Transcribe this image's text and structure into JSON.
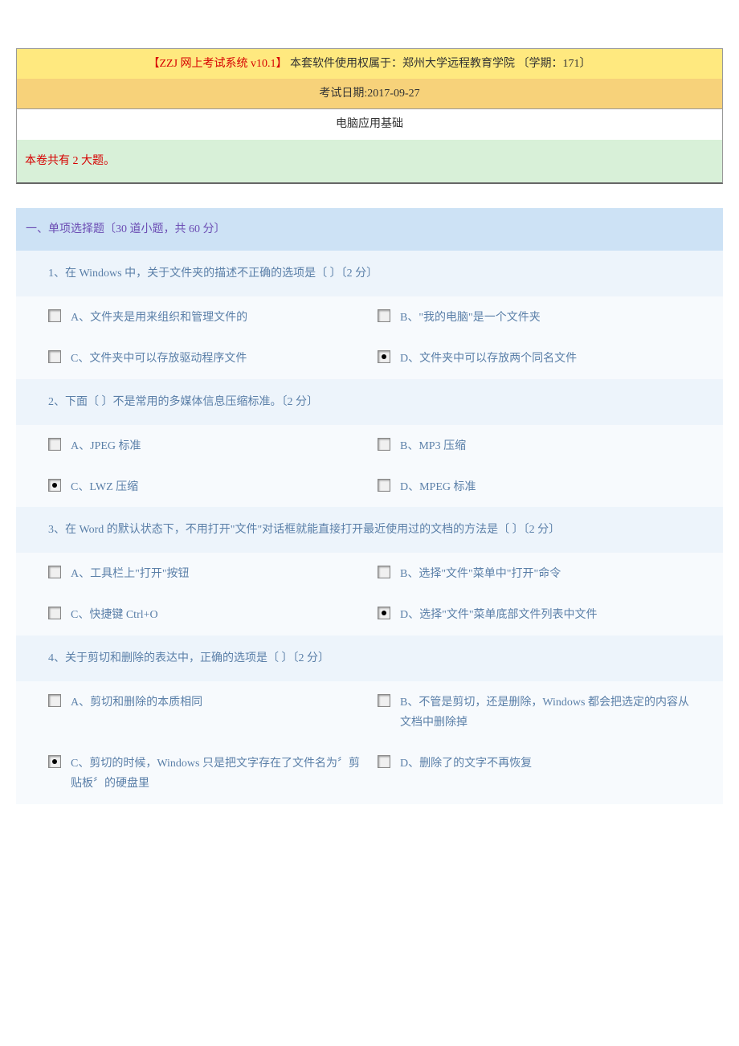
{
  "header": {
    "system_name": "【ZZJ 网上考试系统 v10.1】",
    "license_text": " 本套软件使用权属于：郑州大学远程教育学院 〔学期：171〕",
    "exam_date_label": "考试日期:2017-09-27",
    "exam_title": "电脑应用基础"
  },
  "summary": "本卷共有 2 大题。",
  "section": {
    "title": "一、单项选择题〔30 道小题，共 60 分〕"
  },
  "questions": [
    {
      "text": "1、在 Windows 中，关于文件夹的描述不正确的选项是〔 〕〔2 分〕",
      "options": [
        {
          "letter": "A",
          "text": "文件夹是用来组织和管理文件的",
          "selected": false
        },
        {
          "letter": "B",
          "text": "\"我的电脑\"是一个文件夹",
          "selected": false
        },
        {
          "letter": "C",
          "text": "文件夹中可以存放驱动程序文件",
          "selected": false
        },
        {
          "letter": "D",
          "text": "文件夹中可以存放两个同名文件",
          "selected": true
        }
      ]
    },
    {
      "text": "2、下面〔 〕不是常用的多媒体信息压缩标准。〔2 分〕",
      "options": [
        {
          "letter": "A",
          "text": "JPEG 标准",
          "selected": false
        },
        {
          "letter": "B",
          "text": "MP3 压缩",
          "selected": false
        },
        {
          "letter": "C",
          "text": "LWZ 压缩",
          "selected": true
        },
        {
          "letter": "D",
          "text": "MPEG 标准",
          "selected": false
        }
      ]
    },
    {
      "text": "3、在 Word 的默认状态下，不用打开\"文件\"对话框就能直接打开最近使用过的文档的方法是〔 〕〔2 分〕",
      "options": [
        {
          "letter": "A",
          "text": "工具栏上\"打开\"按钮",
          "selected": false
        },
        {
          "letter": "B",
          "text": "选择\"文件\"菜单中\"打开\"命令",
          "selected": false
        },
        {
          "letter": "C",
          "text": "快捷键 Ctrl+O",
          "selected": false
        },
        {
          "letter": "D",
          "text": "选择\"文件\"菜单底部文件列表中文件",
          "selected": true
        }
      ]
    },
    {
      "text": "4、关于剪切和删除的表达中，正确的选项是〔 〕〔2 分〕",
      "options": [
        {
          "letter": "A",
          "text": "剪切和删除的本质相同",
          "selected": false
        },
        {
          "letter": "B",
          "text": "不管是剪切，还是删除，Windows 都会把选定的内容从文档中删除掉",
          "selected": false
        },
        {
          "letter": "C",
          "text": "剪切的时候，Windows 只是把文字存在了文件名为〞剪贴板〞的硬盘里",
          "selected": true
        },
        {
          "letter": "D",
          "text": "删除了的文字不再恢复",
          "selected": false
        }
      ]
    }
  ],
  "colors": {
    "section_bg": "#cde2f5",
    "question_bg": "#edf4fb",
    "option_bg": "#f7fafd",
    "text_blue": "#5a7fa8",
    "text_purple": "#6b4cb3",
    "header_yellow": "#ffe97f",
    "header_orange": "#f7d27a",
    "summary_green": "#d8f0d8",
    "red": "#d60000"
  }
}
